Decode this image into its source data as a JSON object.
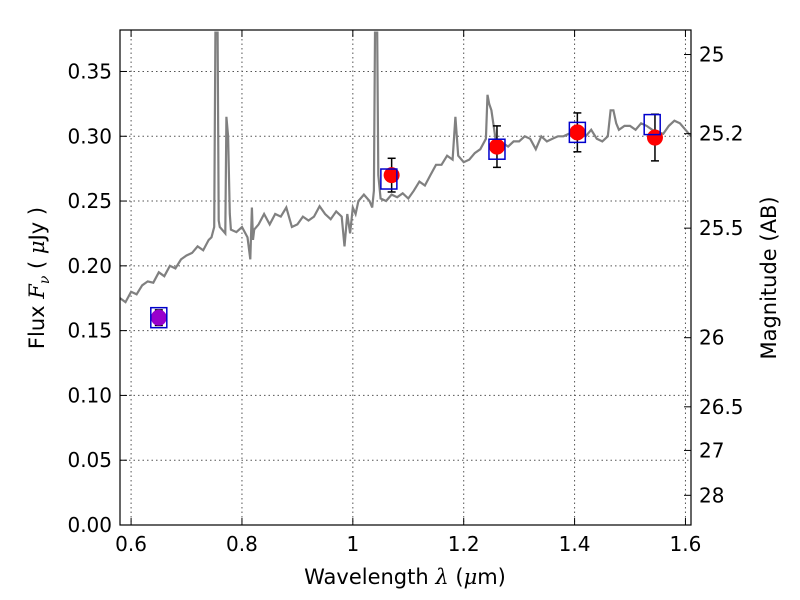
{
  "chart_data": {
    "type": "line",
    "title": "",
    "xlabel": "Wavelength",
    "xlabel_symbol": "λ",
    "xlabel_unit_open": " (",
    "xlabel_unit_mu": "μ",
    "xlabel_unit_rest": "m)",
    "ylabel": "Flux",
    "ylabel_symbol": "F",
    "ylabel_sub": "ν",
    "ylabel_unit_open": "(",
    "ylabel_unit_mu": "μ",
    "ylabel_unit_rest": "Jy",
    "ylabel_unit_close": ")",
    "ylabel_right": "Magnitude (AB)",
    "xlim": [
      0.58,
      1.61
    ],
    "ylim": [
      0.0,
      0.382
    ],
    "grid": true,
    "x_ticks": [
      {
        "v": 0.6,
        "label": "0.6"
      },
      {
        "v": 0.8,
        "label": "0.8"
      },
      {
        "v": 1.0,
        "label": "1"
      },
      {
        "v": 1.2,
        "label": "1.2"
      },
      {
        "v": 1.4,
        "label": "1.4"
      },
      {
        "v": 1.6,
        "label": "1.6"
      }
    ],
    "y_ticks": [
      {
        "v": 0.0,
        "label": "0.00"
      },
      {
        "v": 0.05,
        "label": "0.05"
      },
      {
        "v": 0.1,
        "label": "0.10"
      },
      {
        "v": 0.15,
        "label": "0.15"
      },
      {
        "v": 0.2,
        "label": "0.20"
      },
      {
        "v": 0.25,
        "label": "0.25"
      },
      {
        "v": 0.3,
        "label": "0.30"
      },
      {
        "v": 0.35,
        "label": "0.35"
      }
    ],
    "mag_ticks": [
      {
        "mag": 25,
        "label": "25"
      },
      {
        "mag": 25.2,
        "label": "25.2"
      },
      {
        "mag": 25.5,
        "label": "25.5"
      },
      {
        "mag": 26,
        "label": "26"
      },
      {
        "mag": 26.5,
        "label": "26.5"
      },
      {
        "mag": 27,
        "label": "27"
      },
      {
        "mag": 28,
        "label": "28"
      }
    ],
    "colors": {
      "model": "#808080",
      "observed": "#ff0000",
      "model_band": "#0000cc",
      "errorbar": "#000000",
      "first_point": "#9900cc",
      "grid": "#555555"
    },
    "series": [
      {
        "kind": "model_spectrum",
        "x": [
          0.58,
          0.59,
          0.6,
          0.61,
          0.62,
          0.63,
          0.64,
          0.65,
          0.66,
          0.67,
          0.68,
          0.69,
          0.7,
          0.71,
          0.72,
          0.73,
          0.74,
          0.745,
          0.75,
          0.752,
          0.754,
          0.756,
          0.758,
          0.76,
          0.77,
          0.772,
          0.775,
          0.778,
          0.78,
          0.79,
          0.8,
          0.81,
          0.815,
          0.818,
          0.82,
          0.822,
          0.83,
          0.84,
          0.85,
          0.86,
          0.87,
          0.88,
          0.89,
          0.9,
          0.91,
          0.92,
          0.93,
          0.94,
          0.95,
          0.96,
          0.97,
          0.98,
          0.985,
          0.99,
          0.995,
          1.0,
          1.005,
          1.01,
          1.02,
          1.03,
          1.035,
          1.038,
          1.04,
          1.042,
          1.044,
          1.046,
          1.05,
          1.06,
          1.07,
          1.08,
          1.09,
          1.1,
          1.11,
          1.12,
          1.13,
          1.14,
          1.15,
          1.16,
          1.17,
          1.18,
          1.185,
          1.19,
          1.2,
          1.21,
          1.22,
          1.23,
          1.24,
          1.243,
          1.246,
          1.25,
          1.26,
          1.27,
          1.28,
          1.29,
          1.3,
          1.31,
          1.32,
          1.33,
          1.34,
          1.35,
          1.36,
          1.37,
          1.38,
          1.39,
          1.4,
          1.41,
          1.42,
          1.43,
          1.44,
          1.45,
          1.46,
          1.465,
          1.47,
          1.475,
          1.48,
          1.49,
          1.5,
          1.51,
          1.52,
          1.53,
          1.54,
          1.55,
          1.56,
          1.57,
          1.58,
          1.59,
          1.6,
          1.61
        ],
        "y": [
          0.175,
          0.172,
          0.18,
          0.178,
          0.185,
          0.188,
          0.187,
          0.195,
          0.192,
          0.2,
          0.198,
          0.205,
          0.208,
          0.21,
          0.215,
          0.212,
          0.22,
          0.222,
          0.23,
          0.38,
          0.38,
          0.38,
          0.235,
          0.23,
          0.225,
          0.315,
          0.3,
          0.24,
          0.228,
          0.226,
          0.23,
          0.222,
          0.205,
          0.245,
          0.22,
          0.228,
          0.232,
          0.24,
          0.232,
          0.24,
          0.238,
          0.245,
          0.23,
          0.232,
          0.238,
          0.235,
          0.238,
          0.246,
          0.24,
          0.236,
          0.242,
          0.238,
          0.215,
          0.24,
          0.225,
          0.245,
          0.24,
          0.25,
          0.255,
          0.25,
          0.245,
          0.258,
          0.38,
          0.38,
          0.38,
          0.27,
          0.252,
          0.25,
          0.255,
          0.253,
          0.256,
          0.252,
          0.258,
          0.265,
          0.262,
          0.27,
          0.278,
          0.278,
          0.285,
          0.282,
          0.315,
          0.285,
          0.28,
          0.282,
          0.287,
          0.29,
          0.298,
          0.332,
          0.325,
          0.32,
          0.29,
          0.295,
          0.292,
          0.296,
          0.296,
          0.3,
          0.298,
          0.29,
          0.3,
          0.296,
          0.298,
          0.3,
          0.3,
          0.302,
          0.298,
          0.302,
          0.3,
          0.305,
          0.298,
          0.296,
          0.3,
          0.32,
          0.32,
          0.31,
          0.305,
          0.308,
          0.308,
          0.305,
          0.31,
          0.308,
          0.305,
          0.303,
          0.302,
          0.308,
          0.312,
          0.31,
          0.305,
          0.3
        ]
      },
      {
        "kind": "observed",
        "x": [
          0.65,
          1.07,
          1.26,
          1.405,
          1.545
        ],
        "y": [
          0.16,
          0.27,
          0.292,
          0.303,
          0.299
        ],
        "yerr": [
          0.006,
          0.013,
          0.016,
          0.015,
          0.018
        ]
      },
      {
        "kind": "model_band",
        "x": [
          0.65,
          1.065,
          1.26,
          1.405,
          1.54
        ],
        "y": [
          0.16,
          0.267,
          0.29,
          0.303,
          0.309
        ]
      }
    ]
  }
}
